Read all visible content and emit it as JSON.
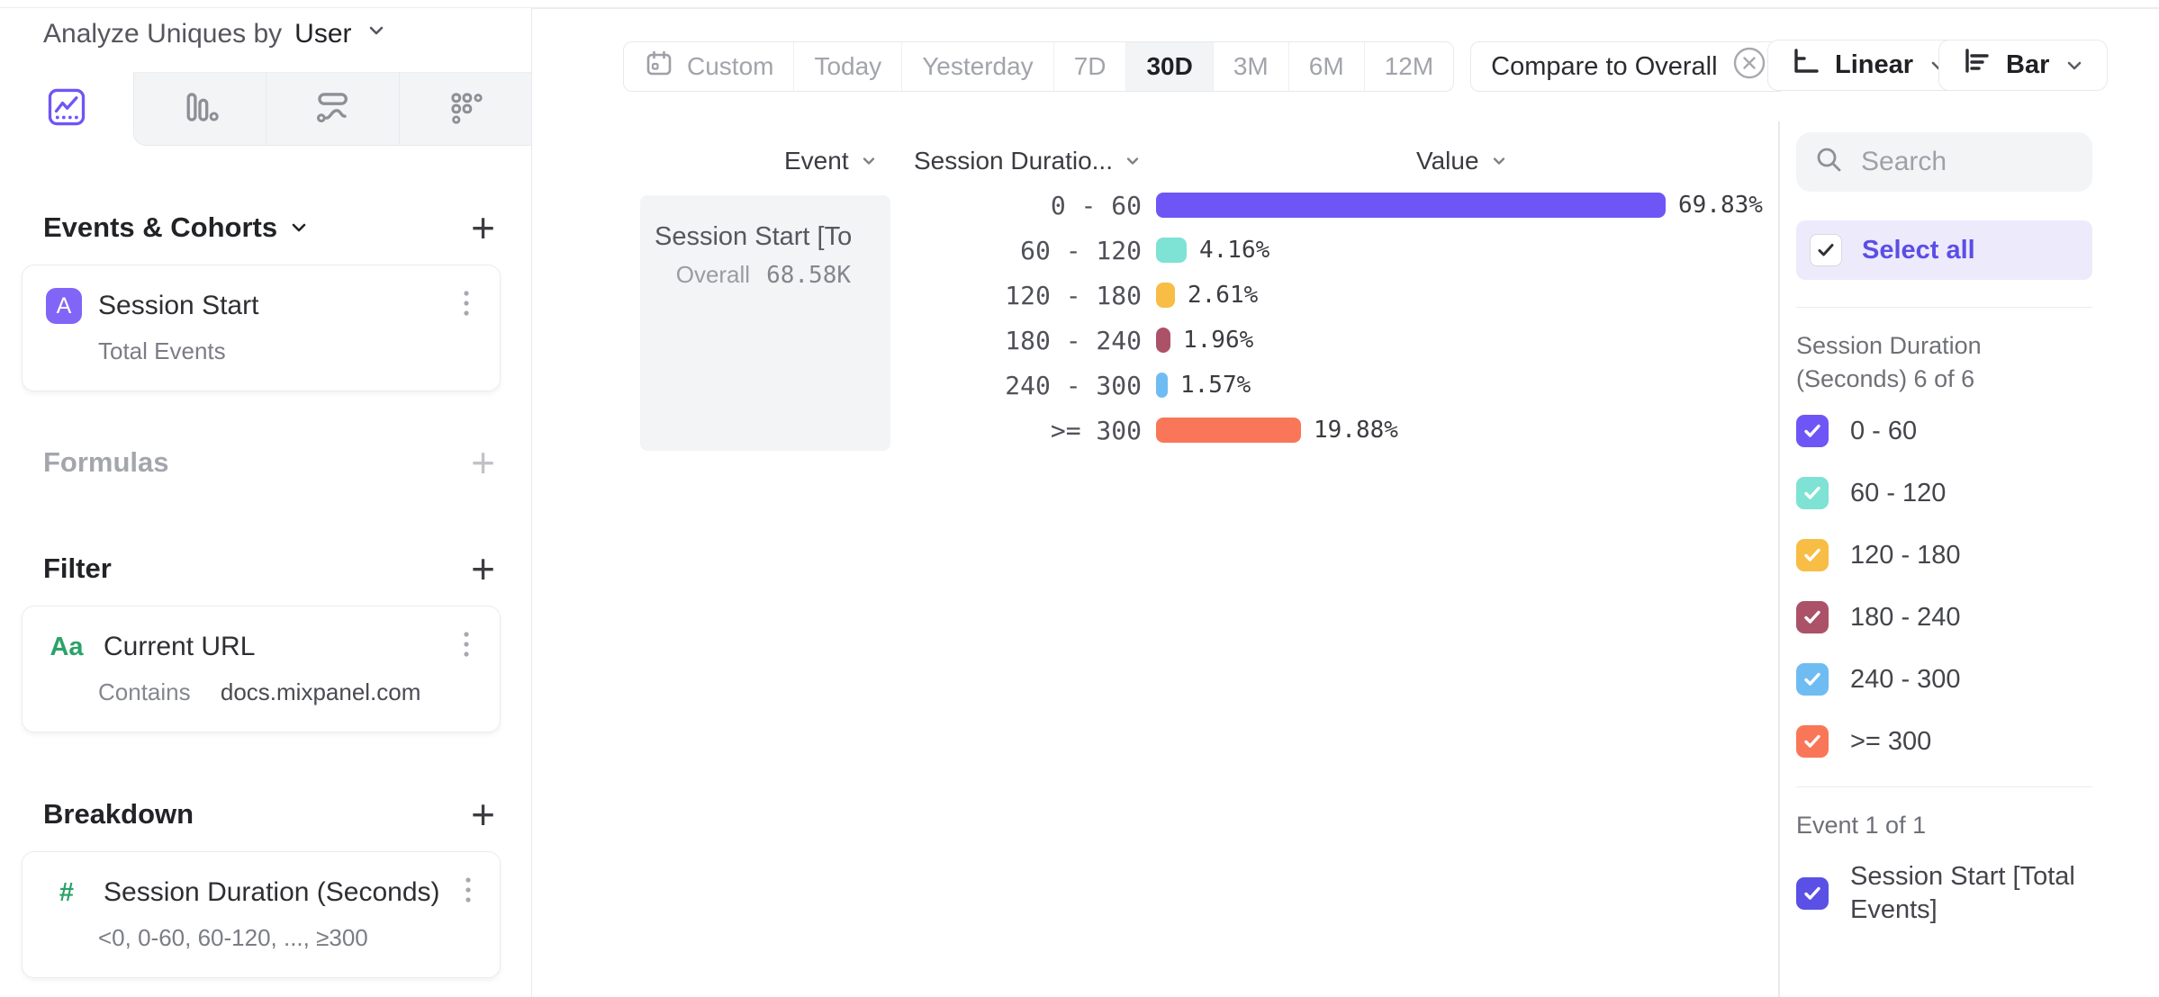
{
  "query_header": {
    "label": "Analyze Uniques by",
    "value": "User"
  },
  "view_tabs": [
    {
      "id": "insights",
      "icon": "insights-chart-icon",
      "active": true
    },
    {
      "id": "funnels",
      "icon": "bar-columns-icon",
      "active": false
    },
    {
      "id": "flows",
      "icon": "flows-icon",
      "active": false
    },
    {
      "id": "retention",
      "icon": "retention-grid-icon",
      "active": false
    }
  ],
  "builder": {
    "events": {
      "title": "Events & Cohorts",
      "add": "+",
      "cards": [
        {
          "badge": "A",
          "title": "Session Start",
          "subtitle": "Total Events"
        }
      ]
    },
    "formulas": {
      "title": "Formulas",
      "add": "+"
    },
    "filter": {
      "title": "Filter",
      "add": "+",
      "cards": [
        {
          "icon_label": "Aa",
          "title": "Current URL",
          "operator": "Contains",
          "value": "docs.mixpanel.com"
        }
      ]
    },
    "breakdown": {
      "title": "Breakdown",
      "add": "+",
      "cards": [
        {
          "icon_label": "#",
          "title": "Session Duration (Seconds)",
          "subtitle": "<0, 0-60, 60-120, ..., ≥300"
        }
      ]
    }
  },
  "toolbar": {
    "date_presets": [
      {
        "label": "Custom",
        "icon": "calendar-icon",
        "active": false
      },
      {
        "label": "Today",
        "active": false
      },
      {
        "label": "Yesterday",
        "active": false
      },
      {
        "label": "7D",
        "active": false
      },
      {
        "label": "30D",
        "active": true
      },
      {
        "label": "3M",
        "active": false
      },
      {
        "label": "6M",
        "active": false
      },
      {
        "label": "12M",
        "active": false
      }
    ],
    "compare": {
      "label": "Compare to Overall",
      "icon": "circle-x-icon"
    },
    "scale": {
      "label": "Linear",
      "icon": "linear-axis-icon"
    },
    "chart_type": {
      "label": "Bar",
      "icon": "horizontal-bars-icon"
    }
  },
  "chart": {
    "column_headers": [
      {
        "label": "Event"
      },
      {
        "label": "Session Duratio..."
      },
      {
        "label": "Value"
      }
    ],
    "event_cell": {
      "title": "Session Start [To...",
      "overall_label": "Overall",
      "overall_value": "68.58K"
    }
  },
  "chart_data": {
    "type": "bar",
    "orientation": "horizontal",
    "title": "Session Start [Total Events] by Session Duration (Seconds)",
    "series_name": "Session Start [Total Events]",
    "overall_total": "68.58K",
    "categories": [
      "0 - 60",
      "60 - 120",
      "120 - 180",
      "180 - 240",
      "240 - 300",
      ">= 300"
    ],
    "values": [
      69.83,
      4.16,
      2.61,
      1.96,
      1.57,
      19.88
    ],
    "value_labels": [
      "69.83%",
      "4.16%",
      "2.61%",
      "1.96%",
      "1.57%",
      "19.88%"
    ],
    "colors": [
      "#6e56f6",
      "#7ee2d4",
      "#f7bd45",
      "#ab5268",
      "#6fbcf3",
      "#f97758"
    ],
    "unit": "%",
    "xlim": [
      0,
      100
    ],
    "grid": false,
    "legend_position": "right-panel"
  },
  "right_panel": {
    "search": {
      "placeholder": "Search",
      "icon": "search-icon"
    },
    "select_all": {
      "label": "Select all",
      "checked": true
    },
    "sections": [
      {
        "id": "segments",
        "heading": "Session Duration (Seconds) 6 of 6",
        "options": [
          {
            "label": "0 - 60",
            "color": "#6e56f6",
            "checked": true
          },
          {
            "label": "60 - 120",
            "color": "#7ee2d4",
            "checked": true
          },
          {
            "label": "120 - 180",
            "color": "#f7bd45",
            "checked": true
          },
          {
            "label": "180 - 240",
            "color": "#ab5268",
            "checked": true
          },
          {
            "label": "240 - 300",
            "color": "#6fbcf3",
            "checked": true
          },
          {
            "label": ">= 300",
            "color": "#f97758",
            "checked": true
          }
        ]
      },
      {
        "id": "events",
        "heading": "Event 1 of 1",
        "options": [
          {
            "label": "Session Start [Total Events]",
            "color": "#5a50e6",
            "checked": true
          }
        ]
      }
    ]
  },
  "colors": {
    "accent_purple": "#6e56f6",
    "badge_purple": "#8165f6",
    "select_purple": "#5b4ee6",
    "property_green": "#2aa268",
    "active_bg": "#f3f4f6",
    "border": "#e8e9ec"
  }
}
